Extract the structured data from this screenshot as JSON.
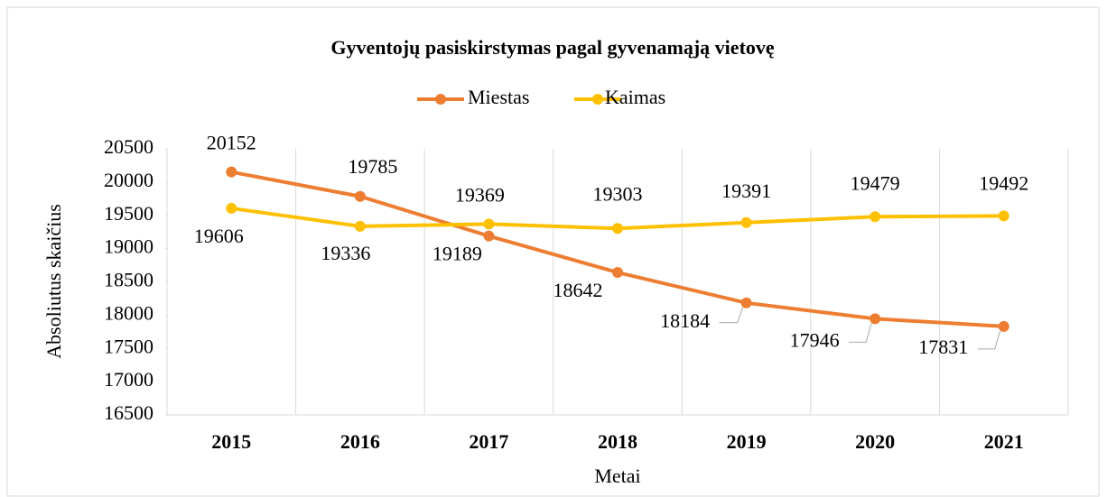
{
  "chart_data": {
    "type": "line",
    "title": "Gyventojų pasiskirstymas pagal gyvenamąją vietovę",
    "x_label": "Metai",
    "y_label": "Absoliutus skaičius",
    "categories": [
      "2015",
      "2016",
      "2017",
      "2018",
      "2019",
      "2020",
      "2021"
    ],
    "series": [
      {
        "name": "Miestas",
        "color": "#ed7d31",
        "values": [
          20152,
          19785,
          19189,
          18642,
          18184,
          17946,
          17831
        ]
      },
      {
        "name": "Kaimas",
        "color": "#ffc000",
        "values": [
          19606,
          19336,
          19369,
          19303,
          19391,
          19479,
          19492
        ]
      }
    ],
    "ylim": [
      16500,
      20500
    ],
    "yticks": [
      16500,
      17000,
      17500,
      18000,
      18500,
      19000,
      19500,
      20000,
      20500
    ],
    "legend": "top",
    "grid": "vertical"
  }
}
